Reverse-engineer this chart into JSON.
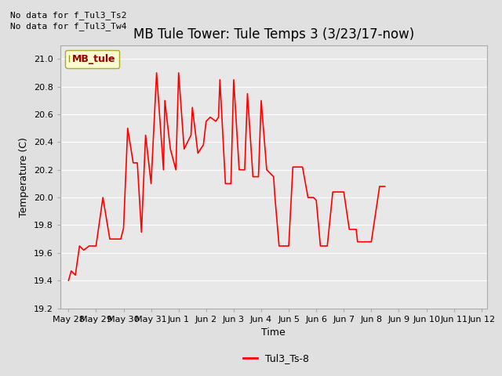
{
  "title": "MB Tule Tower: Tule Temps 3 (3/23/17-now)",
  "xlabel": "Time",
  "ylabel": "Temperature (C)",
  "line_color": "#ff0000",
  "line_label": "Tul3_Ts-8",
  "no_data_text_1": "No data for f_Tul3_Ts2",
  "no_data_text_2": "No data for f_Tul3_Tw4",
  "legend_label": "MB_tule",
  "legend_bg": "#ffffcc",
  "legend_edge": "#999900",
  "ylim": [
    19.2,
    21.1
  ],
  "bg_color": "#e0e0e0",
  "plot_bg": "#e8e8e8",
  "tick_labels": [
    "May 28",
    "May 29",
    "May 30",
    "May 31",
    "Jun 1",
    "Jun 2",
    "Jun 3",
    "Jun 4",
    "Jun 5",
    "Jun 6",
    "Jun 7",
    "Jun 8",
    "Jun 9",
    "Jun 10",
    "Jun 11",
    "Jun 12"
  ],
  "title_fontsize": 12,
  "axis_fontsize": 9,
  "tick_fontsize": 8,
  "x_data": [
    0.0,
    0.1,
    0.25,
    0.4,
    0.55,
    0.75,
    1.0,
    1.25,
    1.5,
    1.7,
    1.9,
    2.0,
    2.15,
    2.35,
    2.5,
    2.65,
    2.8,
    3.0,
    3.2,
    3.45,
    3.5,
    3.7,
    3.9,
    4.0,
    4.2,
    4.45,
    4.5,
    4.7,
    4.9,
    5.0,
    5.15,
    5.35,
    5.45,
    5.5,
    5.7,
    5.9,
    6.0,
    6.2,
    6.4,
    6.5,
    6.7,
    6.9,
    7.0,
    7.2,
    7.45,
    7.5,
    7.65,
    7.85,
    8.0,
    8.15,
    8.4,
    8.5,
    8.7,
    8.9,
    9.0,
    9.15,
    9.4,
    9.6,
    9.85,
    10.0,
    10.2,
    10.45,
    10.5,
    10.7,
    10.9,
    11.0,
    11.3,
    11.5
  ],
  "y_data": [
    19.4,
    19.47,
    19.44,
    19.65,
    19.62,
    19.65,
    19.65,
    20.0,
    19.7,
    19.7,
    19.7,
    19.78,
    20.5,
    20.25,
    20.25,
    19.75,
    20.45,
    20.1,
    20.9,
    20.2,
    20.7,
    20.35,
    20.2,
    20.9,
    20.35,
    20.45,
    20.65,
    20.32,
    20.38,
    20.55,
    20.58,
    20.55,
    20.58,
    20.85,
    20.1,
    20.1,
    20.85,
    20.2,
    20.2,
    20.75,
    20.15,
    20.15,
    20.7,
    20.2,
    20.15,
    20.0,
    19.65,
    19.65,
    19.65,
    20.22,
    20.22,
    20.22,
    20.0,
    20.0,
    19.98,
    19.65,
    19.65,
    20.04,
    20.04,
    20.04,
    19.77,
    19.77,
    19.68,
    19.68,
    19.68,
    19.68,
    20.08,
    20.08
  ]
}
